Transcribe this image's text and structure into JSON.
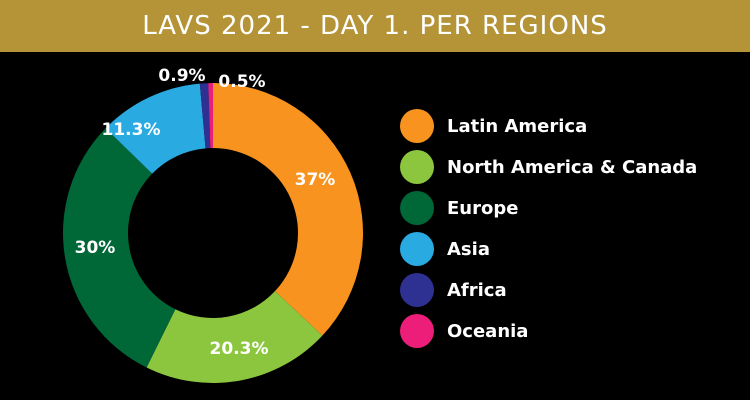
{
  "header": {
    "title": "LAVS 2021 - DAY 1. PER REGIONS"
  },
  "chart_data": {
    "type": "pie",
    "donut": true,
    "title": "LAVS 2021 - DAY 1. PER REGIONS",
    "legend_position": "right",
    "categories": [
      "Latin America",
      "North America & Canada",
      "Europe",
      "Asia",
      "Africa",
      "Oceania"
    ],
    "values": [
      37,
      20.3,
      30,
      11.3,
      0.9,
      0.5
    ],
    "data_labels": [
      "37%",
      "20.3%",
      "30%",
      "11.3%",
      "0.9%",
      "0.5%"
    ],
    "colors": [
      "#f7931e",
      "#8cc63f",
      "#006837",
      "#29abe2",
      "#2e3192",
      "#ed1e79"
    ]
  }
}
